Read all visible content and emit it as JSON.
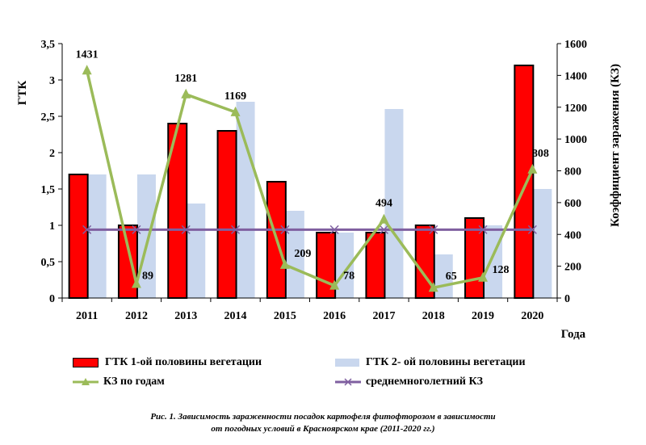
{
  "chart_data": {
    "type": "bar",
    "categories": [
      "2011",
      "2012",
      "2013",
      "2014",
      "2015",
      "2016",
      "2017",
      "2018",
      "2019",
      "2020"
    ],
    "xlabel": "Года",
    "ylabel": "ГТК",
    "y2label": "Коэффициент заражения (КЗ)",
    "ylim": [
      0,
      3.5
    ],
    "y2lim": [
      0,
      1600
    ],
    "yticks": [
      "0",
      "0,5",
      "1",
      "1,5",
      "2",
      "2,5",
      "3",
      "3,5"
    ],
    "y2ticks": [
      "0",
      "200",
      "400",
      "600",
      "800",
      "1000",
      "1200",
      "1400",
      "1600"
    ],
    "series": [
      {
        "name": "ГТК 1-ой  половины вегетации",
        "type": "bar",
        "axis": "left",
        "color": "#ff0000",
        "values": [
          1.7,
          1.0,
          2.4,
          2.3,
          1.6,
          0.9,
          0.9,
          1.0,
          1.1,
          3.2
        ]
      },
      {
        "name": "ГТК 2- ой половины вегетации",
        "type": "bar",
        "axis": "left",
        "color": "#c9d7ee",
        "values": [
          1.7,
          1.7,
          1.3,
          2.7,
          1.2,
          0.9,
          2.6,
          0.6,
          1.0,
          1.5
        ]
      },
      {
        "name": "КЗ по годам",
        "type": "line",
        "axis": "right",
        "color": "#9bbb59",
        "values": [
          1431,
          89,
          1281,
          1169,
          209,
          78,
          494,
          65,
          128,
          808
        ],
        "labels": [
          "1431",
          "89",
          "1281",
          "1169",
          "209",
          "78",
          "494",
          "65",
          "128",
          "808"
        ]
      },
      {
        "name": "среднемноголетний КЗ",
        "type": "line",
        "axis": "right",
        "color": "#7f5fa0",
        "values": [
          430,
          430,
          430,
          430,
          430,
          430,
          430,
          430,
          430,
          430
        ]
      }
    ],
    "legend_position": "bottom",
    "grid": false
  },
  "caption": {
    "line1": "Рис. 1. Зависимость зараженности посадок картофеля фитофторозом в зависимости",
    "line2": "от погодных условий в Красноярском крае (2011-2020 гг.)"
  }
}
